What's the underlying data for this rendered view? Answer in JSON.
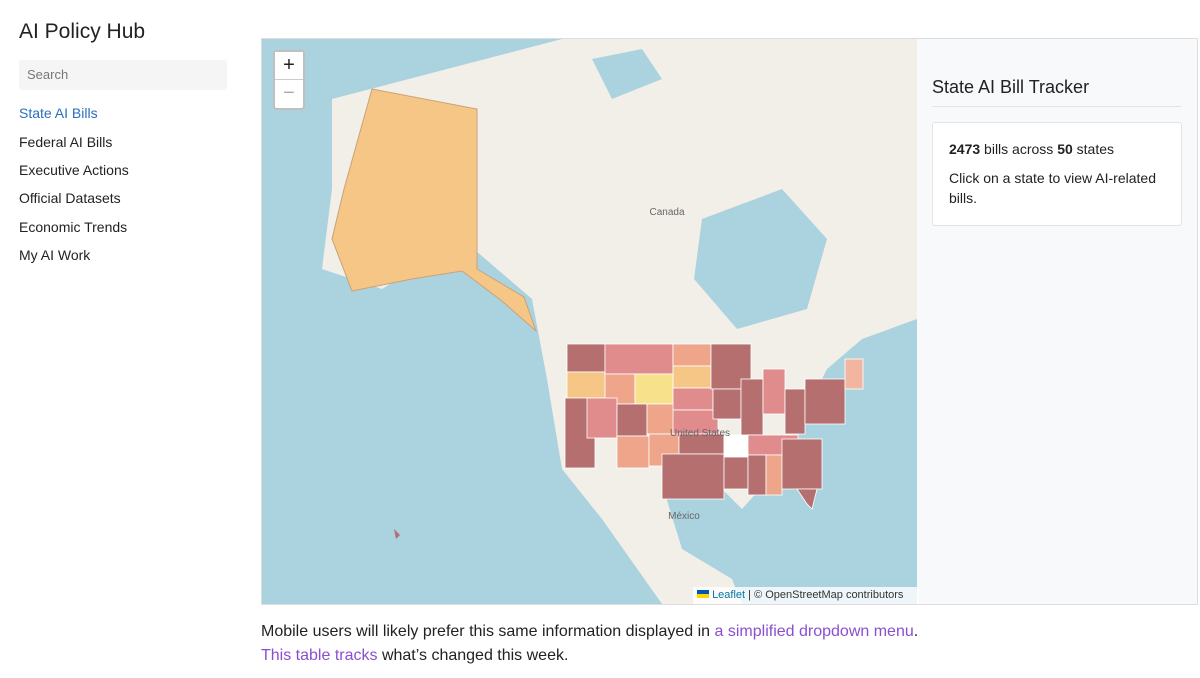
{
  "sidebar": {
    "title": "AI Policy Hub",
    "search_placeholder": "Search",
    "nav": [
      "State AI Bills",
      "Federal AI Bills",
      "Executive Actions",
      "Official Datasets",
      "Economic Trends",
      "My AI Work"
    ]
  },
  "map": {
    "zoom_in": "+",
    "zoom_out": "−",
    "labels": {
      "canada": "Canada",
      "united_states": "United States",
      "mexico": "México"
    },
    "attribution": {
      "link": "Leaflet",
      "text": "| © OpenStreetMap contributors"
    }
  },
  "panel": {
    "title": "State AI Bill Tracker",
    "bill_count": 2473,
    "bills_text": "bills across",
    "state_count": 50,
    "states_text": "states",
    "instruction": "Click on a state to view AI-related bills."
  },
  "footer": {
    "text_before": "Mobile users will likely prefer this same information displayed in",
    "link1": "a simplified dropdown menu",
    "text_after": ".",
    "link2": "This table tracks",
    "text_end": "what’s changed this week."
  }
}
